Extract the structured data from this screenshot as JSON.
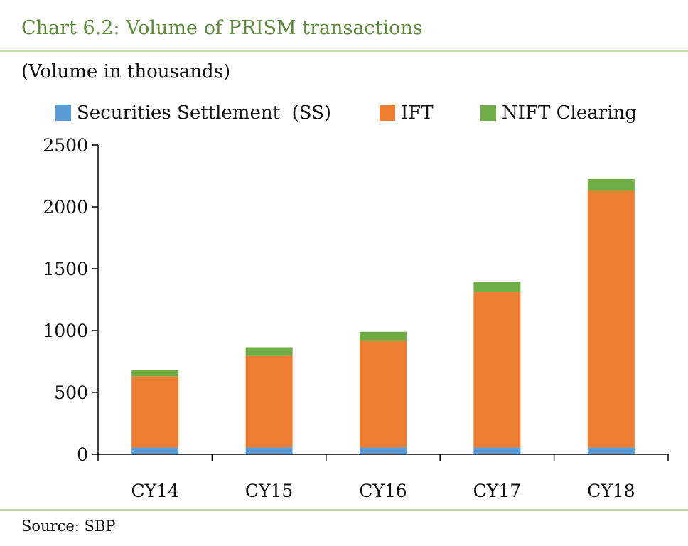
{
  "header": {
    "title": "Chart 6.2: Volume of PRISM transactions"
  },
  "footer": {
    "source": "Source: SBP"
  },
  "colors": {
    "ss": "#5b9bd5",
    "ift": "#ed7d31",
    "nift": "#70ad47",
    "title": "#5c8a3a",
    "rule": "#c6dca6"
  },
  "chart_data": {
    "type": "bar",
    "stacked": true,
    "title": "Chart 6.2: Volume of PRISM transactions",
    "subtitle": "(Volume in thousands)",
    "xlabel": "",
    "ylabel": "",
    "ylim": [
      0,
      2500
    ],
    "yticks": [
      0,
      500,
      1000,
      1500,
      2000,
      2500
    ],
    "grid": false,
    "legend": "top",
    "categories": [
      "CY14",
      "CY15",
      "CY16",
      "CY17",
      "CY18"
    ],
    "series": [
      {
        "name": "Securities Settlement  (SS)",
        "values": [
          55,
          55,
          55,
          55,
          55
        ]
      },
      {
        "name": "IFT",
        "values": [
          575,
          740,
          865,
          1255,
          2080
        ]
      },
      {
        "name": "NIFT Clearing",
        "values": [
          50,
          70,
          70,
          85,
          90
        ]
      }
    ]
  }
}
